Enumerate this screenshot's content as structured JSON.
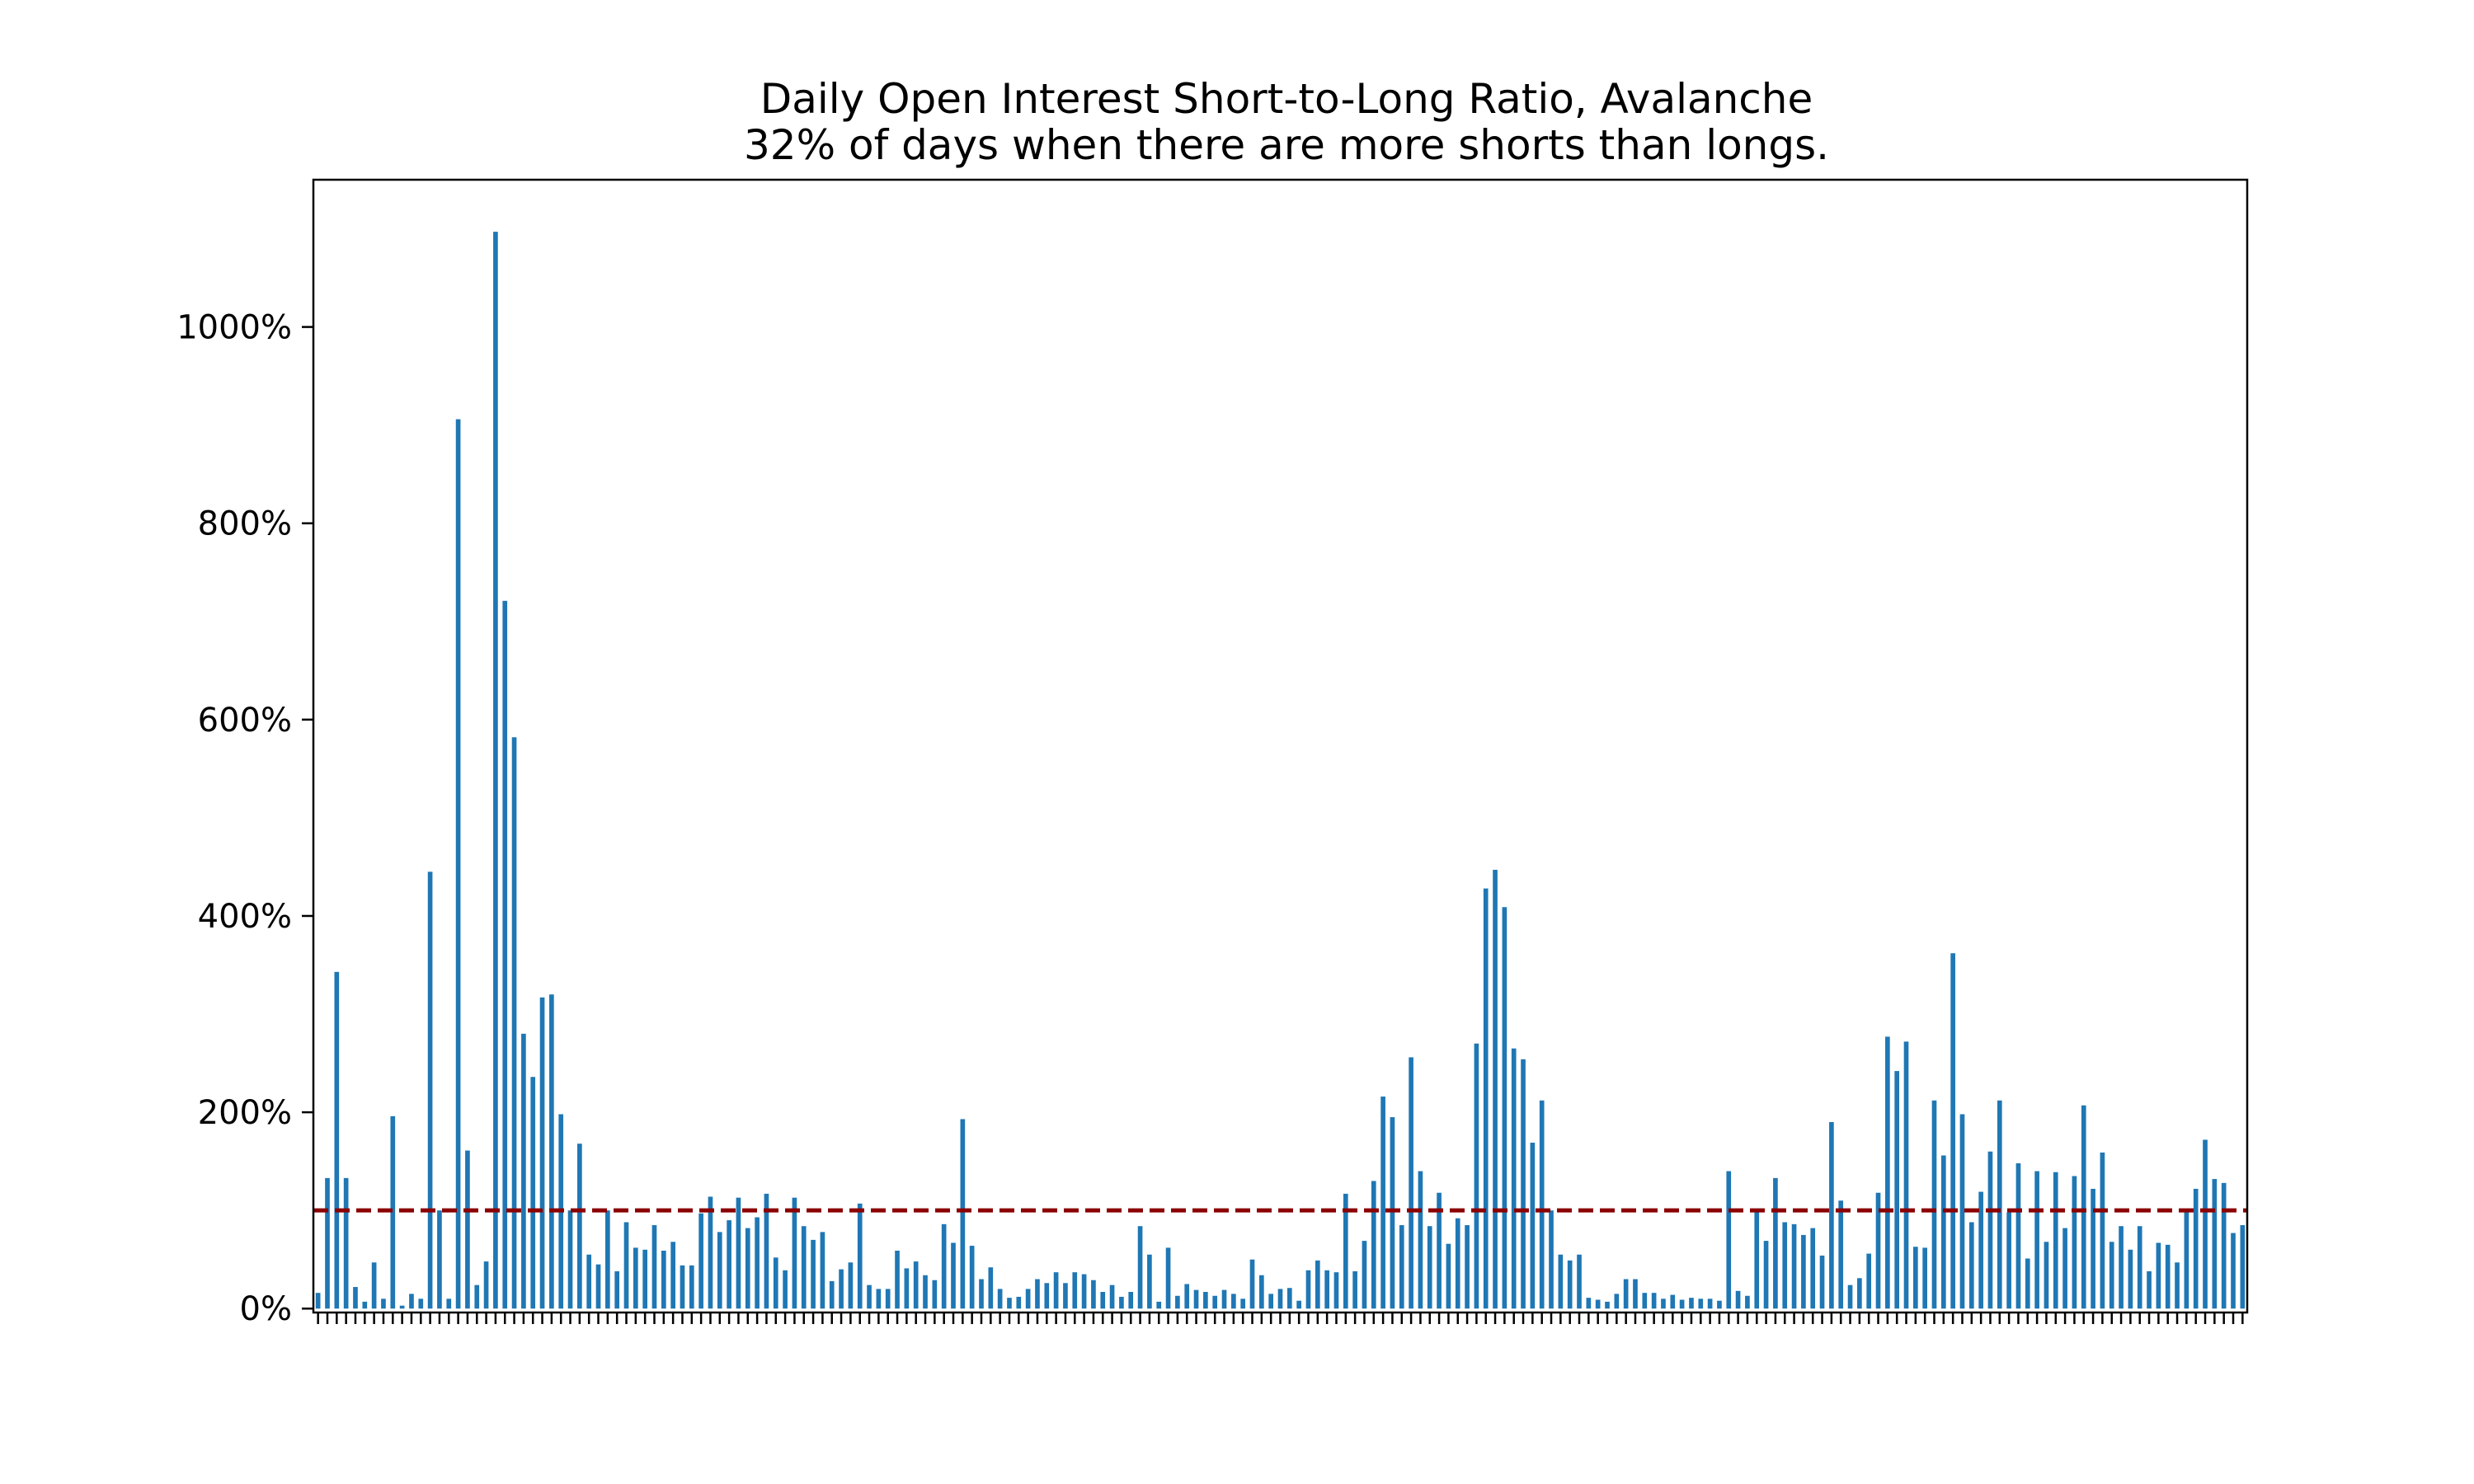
{
  "chart_data": {
    "type": "bar",
    "title": "Daily Open Interest Short-to-Long Ratio, Avalanche",
    "subtitle": "32% of days when there are more shorts than longs.",
    "xlabel": "",
    "ylabel": "",
    "ylim": [
      -4,
      1150
    ],
    "yticks": [
      0,
      200,
      400,
      600,
      800,
      1000
    ],
    "ytick_labels": [
      "0%",
      "200%",
      "400%",
      "600%",
      "800%",
      "1000%"
    ],
    "reference_line": {
      "value": 100,
      "style": "dashed",
      "color": "#8b0000"
    },
    "bar_color": "#1f77b4",
    "grid": false,
    "values": [
      16,
      133,
      343,
      133,
      22,
      7,
      47,
      10,
      196,
      3,
      15,
      10,
      445,
      100,
      10,
      906,
      161,
      24,
      48,
      1097,
      721,
      582,
      280,
      236,
      317,
      320,
      198,
      100,
      168,
      55,
      45,
      100,
      38,
      88,
      62,
      60,
      85,
      59,
      68,
      44,
      44,
      97,
      114,
      78,
      90,
      113,
      82,
      93,
      117,
      52,
      39,
      113,
      84,
      70,
      78,
      28,
      40,
      47,
      107,
      24,
      20,
      20,
      59,
      41,
      48,
      34,
      29,
      86,
      67,
      193,
      64,
      30,
      42,
      20,
      11,
      12,
      20,
      30,
      26,
      37,
      26,
      37,
      35,
      29,
      17,
      24,
      12,
      17,
      84,
      55,
      7,
      62,
      13,
      25,
      19,
      17,
      13,
      19,
      15,
      10,
      50,
      34,
      15,
      20,
      21,
      8,
      39,
      49,
      39,
      37,
      117,
      38,
      69,
      130,
      216,
      195,
      85,
      256,
      140,
      84,
      118,
      66,
      92,
      85,
      270,
      428,
      447,
      409,
      265,
      254,
      169,
      212,
      100,
      55,
      49,
      55,
      11,
      9,
      7,
      15,
      30,
      30,
      16,
      16,
      10,
      14,
      9,
      11,
      10,
      10,
      8,
      140,
      18,
      13,
      100,
      69,
      133,
      88,
      86,
      75,
      82,
      54,
      190,
      110,
      24,
      31,
      56,
      118,
      277,
      242,
      272,
      63,
      62,
      212,
      156,
      362,
      198,
      88,
      119,
      160,
      212,
      98,
      148,
      51,
      140,
      68,
      139,
      82,
      135,
      207,
      122,
      159,
      68,
      84,
      60,
      84,
      38,
      67,
      65,
      47,
      100,
      122,
      172,
      132,
      128,
      77,
      85
    ],
    "value_format": "percent"
  }
}
